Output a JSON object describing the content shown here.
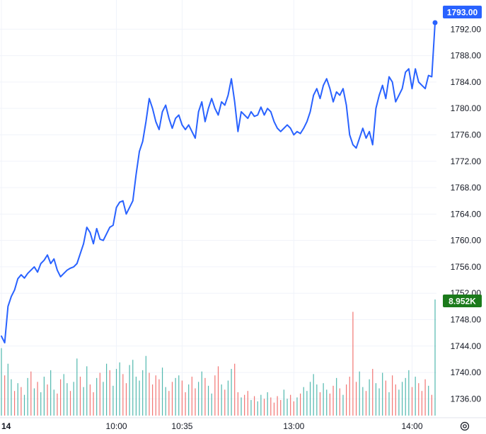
{
  "chart_data": {
    "type": "line",
    "title": "",
    "xlabel": "",
    "ylabel": "",
    "ylim": [
      1734.0,
      1794.5
    ],
    "y_ticks": [
      1736,
      1740,
      1744,
      1748,
      1752,
      1756,
      1760,
      1764,
      1768,
      1772,
      1776,
      1780,
      1784,
      1788,
      1792
    ],
    "y_tick_labels": [
      "1736.00",
      "1740.00",
      "1744.00",
      "1748.00",
      "1752.00",
      "1756.00",
      "1760.00",
      "1764.00",
      "1768.00",
      "1772.00",
      "1776.00",
      "1780.00",
      "1784.00",
      "1788.00",
      "1792.00"
    ],
    "x_ticks": [
      {
        "label": "14",
        "index": 0
      },
      {
        "label": "10:00",
        "index": 35
      },
      {
        "label": "10:35",
        "index": 55
      },
      {
        "label": "13:00",
        "index": 89
      },
      {
        "label": "14:00",
        "index": 125
      }
    ],
    "grid": true,
    "colors": {
      "line": "#2962ff",
      "volume_up": "#26a69a",
      "volume_down": "#ef5350",
      "price_badge": "#2962ff",
      "volume_badge": "#1b7a1b",
      "grid": "#f0f3fa"
    },
    "last_price_label": "1793.00",
    "last_volume_label": "8.952K",
    "series": [
      {
        "values": [
          1745.5,
          1744.5,
          1750.0,
          1751.5,
          1752.5,
          1754.2,
          1754.8,
          1754.3,
          1755.0,
          1755.5,
          1756.0,
          1755.2,
          1756.5,
          1757.0,
          1757.8,
          1756.5,
          1757.2,
          1755.5,
          1754.5,
          1755.0,
          1755.5,
          1755.8,
          1756.0,
          1756.5,
          1758.0,
          1759.5,
          1762.0,
          1761.2,
          1759.5,
          1761.8,
          1760.2,
          1760.0,
          1761.0,
          1762.0,
          1762.3,
          1765.0,
          1765.8,
          1766.0,
          1764.0,
          1765.0,
          1766.0,
          1770.0,
          1773.5,
          1775.0,
          1778.0,
          1781.5,
          1780.0,
          1778.0,
          1776.8,
          1779.5,
          1780.5,
          1778.5,
          1777.0,
          1778.5,
          1779.0,
          1777.5,
          1776.8,
          1777.5,
          1776.5,
          1775.5,
          1779.5,
          1781.0,
          1778.0,
          1780.0,
          1781.5,
          1780.0,
          1779.0,
          1781.0,
          1780.5,
          1782.0,
          1784.5,
          1781.0,
          1776.5,
          1779.5,
          1779.0,
          1778.5,
          1779.5,
          1778.8,
          1779.0,
          1780.2,
          1779.0,
          1780.0,
          1779.5,
          1778.0,
          1777.0,
          1776.5,
          1777.0,
          1777.5,
          1777.0,
          1776.0,
          1776.5,
          1776.2,
          1777.0,
          1778.0,
          1779.5,
          1782.0,
          1783.0,
          1781.5,
          1783.5,
          1784.5,
          1783.0,
          1781.0,
          1782.5,
          1782.0,
          1783.0,
          1780.5,
          1776.0,
          1774.5,
          1774.0,
          1775.5,
          1777.0,
          1775.5,
          1776.5,
          1774.5,
          1780.0,
          1782.0,
          1783.5,
          1781.5,
          1784.8,
          1784.0,
          1781.0,
          1782.0,
          1783.0,
          1785.5,
          1786.0,
          1783.0,
          1786.0,
          1784.0,
          1783.5,
          1783.0,
          1785.0,
          1784.8,
          1793.0
        ]
      }
    ],
    "volume": {
      "values": [
        5.2,
        3.1,
        4.0,
        2.8,
        1.9,
        2.5,
        2.2,
        1.6,
        2.9,
        3.4,
        2.1,
        2.6,
        1.8,
        3.0,
        2.4,
        3.5,
        2.0,
        1.7,
        2.8,
        3.2,
        2.5,
        1.9,
        2.6,
        4.4,
        3.0,
        2.2,
        3.8,
        2.4,
        1.8,
        2.9,
        3.3,
        2.6,
        4.0,
        3.5,
        2.3,
        3.6,
        4.1,
        3.2,
        2.5,
        3.9,
        4.3,
        3.0,
        2.7,
        3.5,
        4.6,
        3.3,
        2.4,
        3.1,
        2.8,
        3.7,
        2.2,
        1.9,
        2.6,
        2.9,
        3.1,
        2.7,
        1.8,
        2.4,
        3.0,
        2.1,
        2.6,
        3.4,
        2.9,
        2.3,
        1.7,
        3.1,
        3.8,
        2.4,
        2.0,
        2.7,
        3.6,
        4.0,
        1.8,
        1.4,
        1.6,
        1.9,
        1.2,
        1.5,
        1.1,
        1.6,
        1.3,
        1.8,
        1.4,
        1.0,
        1.5,
        1.2,
        2.0,
        1.3,
        1.6,
        1.1,
        1.4,
        1.7,
        2.2,
        1.9,
        2.6,
        3.2,
        2.4,
        1.8,
        2.5,
        2.0,
        1.7,
        2.3,
        2.9,
        2.1,
        1.6,
        2.4,
        3.0,
        8.0,
        2.6,
        3.4,
        2.2,
        1.9,
        2.8,
        3.6,
        2.5,
        2.1,
        3.3,
        2.7,
        1.8,
        3.1,
        2.4,
        2.0,
        2.6,
        2.9,
        3.5,
        2.2,
        3.0,
        2.5,
        1.9,
        2.8,
        2.3,
        1.6,
        8.952
      ],
      "up": [
        true,
        false,
        true,
        true,
        false,
        true,
        false,
        true,
        true,
        false,
        true,
        false,
        true,
        true,
        false,
        true,
        true,
        false,
        false,
        true,
        true,
        false,
        true,
        true,
        false,
        true,
        true,
        false,
        false,
        true,
        false,
        true,
        true,
        false,
        true,
        true,
        true,
        false,
        false,
        true,
        true,
        true,
        true,
        true,
        true,
        false,
        false,
        false,
        false,
        true,
        true,
        false,
        false,
        true,
        true,
        false,
        false,
        true,
        false,
        false,
        true,
        true,
        false,
        true,
        true,
        false,
        false,
        true,
        false,
        true,
        true,
        false,
        false,
        true,
        false,
        false,
        true,
        false,
        true,
        true,
        false,
        true,
        false,
        false,
        false,
        false,
        true,
        true,
        false,
        false,
        true,
        false,
        true,
        true,
        true,
        true,
        true,
        false,
        true,
        true,
        false,
        false,
        true,
        false,
        true,
        false,
        false,
        false,
        false,
        true,
        true,
        false,
        true,
        false,
        true,
        true,
        true,
        false,
        true,
        false,
        false,
        true,
        true,
        true,
        true,
        false,
        true,
        false,
        false,
        false,
        true,
        false,
        true
      ]
    }
  }
}
